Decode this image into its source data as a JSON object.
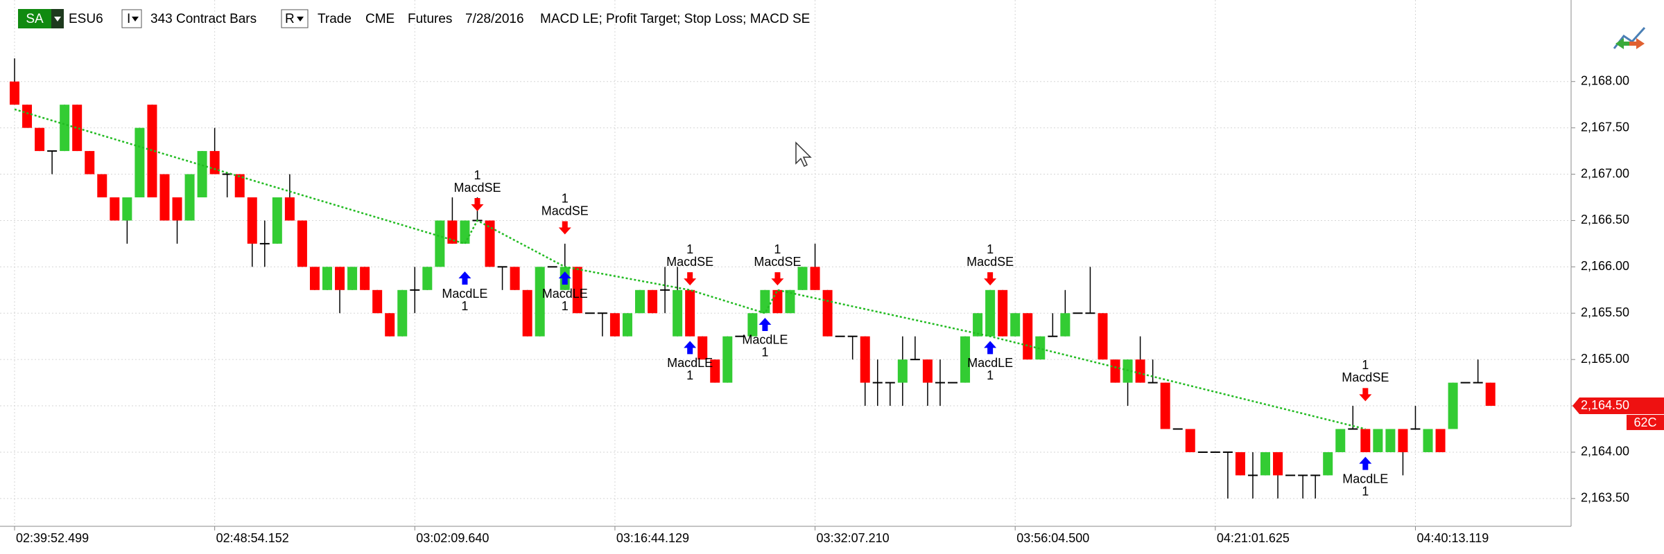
{
  "header": {
    "account": "SA",
    "symbol": "ESU6",
    "interval_menu": "I",
    "bars": "343 Contract Bars",
    "range_menu": "R",
    "data_type": "Trade",
    "exchange": "CME",
    "market": "Futures",
    "date": "7/28/2016",
    "strategies": "MACD LE; Profit Target; Stop Loss; MACD SE"
  },
  "chart_data": {
    "type": "candlestick",
    "categories": [
      "02:39:52.499",
      null,
      null,
      null,
      null,
      null,
      null,
      null,
      null,
      null,
      null,
      null,
      null,
      null,
      null,
      null,
      "02:48:54.152",
      null,
      null,
      null,
      null,
      null,
      null,
      null,
      null,
      null,
      null,
      null,
      null,
      null,
      null,
      null,
      "03:02:09.640",
      null,
      null,
      null,
      null,
      null,
      null,
      null,
      null,
      null,
      null,
      null,
      null,
      null,
      null,
      null,
      "03:16:44.129",
      null,
      null,
      null,
      null,
      null,
      null,
      null,
      null,
      null,
      null,
      null,
      null,
      null,
      null,
      null,
      "03:32:07.210",
      null,
      null,
      null,
      null,
      null,
      null,
      null,
      null,
      null,
      null,
      null,
      null,
      null,
      null,
      null,
      "03:56:04.500",
      null,
      null,
      null,
      null,
      null,
      null,
      null,
      null,
      null,
      null,
      null,
      null,
      null,
      null,
      null,
      "04:21:01.625",
      null,
      null,
      null,
      null,
      null,
      null,
      null,
      null,
      null,
      null,
      null,
      null,
      null,
      null,
      null,
      "04:40:13.119",
      null,
      null,
      null,
      null,
      null,
      null
    ],
    "open": [
      2168,
      2167.75,
      2167.5,
      2167.25,
      2167.25,
      2167.75,
      2167.25,
      2167,
      2166.75,
      2166.5,
      2166.75,
      2167.75,
      2167,
      2166.75,
      2166.5,
      2166.75,
      2167.25,
      2167,
      2167,
      2166.75,
      2166.25,
      2166.25,
      2166.75,
      2166.5,
      2166,
      2165.75,
      2166,
      2165.75,
      2166,
      2165.75,
      2165.5,
      2165.25,
      2165.75,
      2165.75,
      2166,
      2166.5,
      2166.25,
      2166.5,
      2166.5,
      2166,
      2166,
      2165.75,
      2165.25,
      2166,
      2165.75,
      2166,
      2165.5,
      2165.5,
      2165.5,
      2165.25,
      2165.5,
      2165.75,
      2165.75,
      2165.25,
      2165.75,
      2165.25,
      2165,
      2164.75,
      2165.25,
      2165.25,
      2165.5,
      2165.75,
      2165.5,
      2165.75,
      2166,
      2165.75,
      2165.25,
      2165.25,
      2165.25,
      2164.75,
      2164.75,
      2164.75,
      2165,
      2165,
      2164.75,
      2164.75,
      2164.75,
      2165.25,
      2165.25,
      2165.75,
      2165.25,
      2165.5,
      2165,
      2165.25,
      2165.25,
      2165.5,
      2165.5,
      2165.5,
      2165,
      2164.75,
      2165,
      2164.75,
      2164.75,
      2164.25,
      2164.25,
      2164,
      2164,
      2164,
      2164,
      2163.75,
      2163.75,
      2164,
      2163.75,
      2163.75,
      2163.75,
      2163.75,
      2164,
      2164.25,
      2164.25,
      2164,
      2164,
      2164.25,
      2164.25,
      2164,
      2164.25,
      2164.25,
      2164.75,
      2164.75,
      2164.75
    ],
    "high": [
      2168.25,
      2167.75,
      2167.5,
      2167.25,
      2167.75,
      2167.75,
      2167.25,
      2167,
      2166.75,
      2166.75,
      2167.5,
      2167.75,
      2167,
      2166.75,
      2167,
      2167.25,
      2167.5,
      2167,
      2167,
      2166.75,
      2166.5,
      2166.75,
      2167,
      2166.5,
      2166,
      2166,
      2166,
      2166,
      2166,
      2165.75,
      2165.5,
      2165.75,
      2166,
      2166,
      2166.5,
      2166.75,
      2166.5,
      2166.75,
      2166.5,
      2166,
      2166,
      2165.75,
      2166,
      2166,
      2166.25,
      2166,
      2165.5,
      2165.5,
      2165.5,
      2165.5,
      2165.75,
      2165.75,
      2166,
      2166,
      2165.75,
      2165.25,
      2165,
      2165.25,
      2165.25,
      2165.5,
      2165.75,
      2165.75,
      2165.75,
      2166,
      2166.25,
      2165.75,
      2165.25,
      2165.25,
      2165.25,
      2165,
      2164.75,
      2165.25,
      2165.25,
      2165,
      2165,
      2164.75,
      2165.25,
      2165.5,
      2165.75,
      2165.75,
      2165.5,
      2165.5,
      2165.25,
      2165.5,
      2165.75,
      2165.5,
      2166,
      2165.5,
      2165,
      2165,
      2165.25,
      2165,
      2164.75,
      2164.25,
      2164.25,
      2164,
      2164,
      2164,
      2164,
      2164,
      2164,
      2164,
      2163.75,
      2163.75,
      2163.75,
      2164,
      2164.25,
      2164.5,
      2164.25,
      2164.25,
      2164.25,
      2164.25,
      2164.5,
      2164.25,
      2164.25,
      2164.75,
      2164.75,
      2165,
      2164.75
    ],
    "low": [
      2167.75,
      2167.5,
      2167.25,
      2167,
      2167.25,
      2167.25,
      2167,
      2166.75,
      2166.5,
      2166.25,
      2166.75,
      2166.75,
      2166.5,
      2166.25,
      2166.5,
      2166.75,
      2167,
      2166.75,
      2166.75,
      2166,
      2166,
      2166.25,
      2166.5,
      2166,
      2165.75,
      2165.75,
      2165.5,
      2165.75,
      2165.75,
      2165.5,
      2165.25,
      2165.25,
      2165.5,
      2165.75,
      2166,
      2166.25,
      2166.25,
      2166.5,
      2166,
      2165.75,
      2165.75,
      2165.25,
      2165.25,
      2166,
      2165.75,
      2165.5,
      2165.5,
      2165.25,
      2165.25,
      2165.25,
      2165.5,
      2165.5,
      2165.5,
      2165.25,
      2165.25,
      2165,
      2164.75,
      2164.75,
      2165.25,
      2165.25,
      2165.5,
      2165.5,
      2165.5,
      2165.75,
      2165.75,
      2165.25,
      2165.25,
      2165,
      2164.5,
      2164.5,
      2164.5,
      2164.5,
      2165,
      2164.5,
      2164.5,
      2164.75,
      2164.75,
      2165.25,
      2165.25,
      2165.25,
      2165.25,
      2165,
      2165,
      2165.25,
      2165.25,
      2165.5,
      2165.5,
      2165,
      2164.75,
      2164.5,
      2164.75,
      2164.75,
      2164.25,
      2164.25,
      2164,
      2164,
      2164,
      2163.5,
      2163.75,
      2163.5,
      2163.75,
      2163.5,
      2163.75,
      2163.5,
      2163.5,
      2163.75,
      2164,
      2164.25,
      2164,
      2164,
      2164,
      2163.75,
      2164.25,
      2164,
      2164,
      2164.25,
      2164.75,
      2164.75,
      2164.5
    ],
    "close": [
      2167.75,
      2167.5,
      2167.25,
      2167.25,
      2167.75,
      2167.25,
      2167,
      2166.75,
      2166.5,
      2166.75,
      2167.5,
      2166.75,
      2166.5,
      2166.5,
      2167,
      2167.25,
      2167,
      2167,
      2166.75,
      2166.25,
      2166.25,
      2166.75,
      2166.5,
      2166,
      2165.75,
      2166,
      2165.75,
      2166,
      2165.75,
      2165.5,
      2165.25,
      2165.75,
      2165.75,
      2166,
      2166.5,
      2166.25,
      2166.5,
      2166.5,
      2166,
      2166,
      2165.75,
      2165.25,
      2166,
      2166,
      2166,
      2165.5,
      2165.5,
      2165.5,
      2165.25,
      2165.5,
      2165.75,
      2165.5,
      2165.75,
      2165.75,
      2165.25,
      2165,
      2164.75,
      2165.25,
      2165.25,
      2165.5,
      2165.75,
      2165.5,
      2165.75,
      2166,
      2165.75,
      2165.25,
      2165.25,
      2165.25,
      2164.75,
      2164.75,
      2164.75,
      2165,
      2165,
      2164.75,
      2164.75,
      2164.75,
      2165.25,
      2165.5,
      2165.75,
      2165.25,
      2165.5,
      2165,
      2165.25,
      2165.25,
      2165.5,
      2165.5,
      2165.5,
      2165,
      2164.75,
      2165,
      2164.75,
      2164.75,
      2164.25,
      2164.25,
      2164,
      2164,
      2164,
      2164,
      2163.75,
      2163.75,
      2164,
      2163.75,
      2163.75,
      2163.75,
      2163.75,
      2164,
      2164.25,
      2164.25,
      2164,
      2164.25,
      2164.25,
      2164,
      2164.25,
      2164.25,
      2164,
      2164.75,
      2164.75,
      2164.75,
      2164.5
    ],
    "up_color": "#33cc33",
    "down_color": "#ff0000",
    "ylim": [
      2163.2,
      2168.85
    ],
    "yticks": [
      {
        "value": 2163.5,
        "label": "2,163.50"
      },
      {
        "value": 2164,
        "label": "2,164.00"
      },
      {
        "value": 2164.5,
        "label": "2,164.50"
      },
      {
        "value": 2165,
        "label": "2,165.00"
      },
      {
        "value": 2165.5,
        "label": "2,165.50"
      },
      {
        "value": 2166,
        "label": "2,166.00"
      },
      {
        "value": 2166.5,
        "label": "2,166.50"
      },
      {
        "value": 2167,
        "label": "2,167.00"
      },
      {
        "value": 2167.5,
        "label": "2,167.50"
      },
      {
        "value": 2168,
        "label": "2,168.00"
      }
    ],
    "grid": true,
    "trade_line": {
      "color": "#22bb22",
      "x": [
        0,
        36,
        37,
        44,
        54,
        60,
        61,
        78,
        108
      ],
      "values": [
        2167.7,
        2166.25,
        2166.5,
        2166,
        2165.75,
        2165.5,
        2165.75,
        2165.25,
        2164.25
      ]
    },
    "signals": [
      {
        "side": "short",
        "label": "MacdSE",
        "qty": 1,
        "index": 37,
        "price": 2166.6
      },
      {
        "side": "short",
        "label": "MacdSE",
        "qty": 1,
        "index": 44,
        "price": 2166.35
      },
      {
        "side": "short",
        "label": "MacdSE",
        "qty": 1,
        "index": 54,
        "price": 2165.8
      },
      {
        "side": "short",
        "label": "MacdSE",
        "qty": 1,
        "index": 61,
        "price": 2165.8
      },
      {
        "side": "short",
        "label": "MacdSE",
        "qty": 1,
        "index": 78,
        "price": 2165.8
      },
      {
        "side": "short",
        "label": "MacdSE",
        "qty": 1,
        "index": 108,
        "price": 2164.55
      },
      {
        "side": "long",
        "label": "MacdLE",
        "qty": 1,
        "index": 36,
        "price": 2165.95
      },
      {
        "side": "long",
        "label": "MacdLE",
        "qty": 1,
        "index": 44,
        "price": 2165.95
      },
      {
        "side": "long",
        "label": "MacdLE",
        "qty": 1,
        "index": 54,
        "price": 2165.2
      },
      {
        "side": "long",
        "label": "MacdLE",
        "qty": 1,
        "index": 60,
        "price": 2165.45
      },
      {
        "side": "long",
        "label": "MacdLE",
        "qty": 1,
        "index": 78,
        "price": 2165.2
      },
      {
        "side": "long",
        "label": "MacdLE",
        "qty": 1,
        "index": 108,
        "price": 2163.95
      }
    ],
    "last_price": {
      "value": 2164.5,
      "label": "2,164.50"
    },
    "countdown": "62C"
  }
}
